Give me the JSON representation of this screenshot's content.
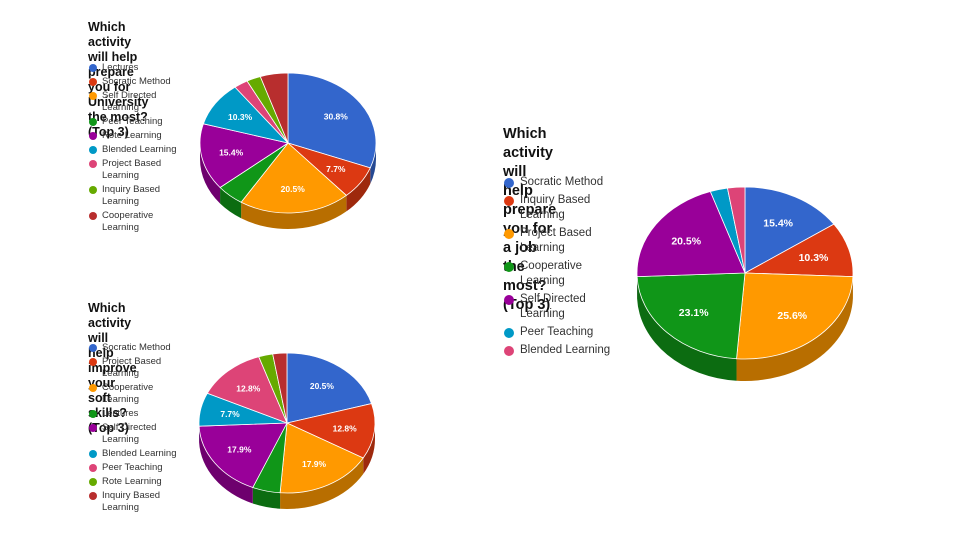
{
  "chart_data": [
    {
      "type": "pie",
      "title": "Which activity will help prepare you for\nUniversity the most? (Top 3)",
      "slices": [
        {
          "label": "Lectures",
          "value": 30.8,
          "color": "#3366cc",
          "value_label": "30.8%"
        },
        {
          "label": "Socratic Method",
          "value": 7.7,
          "color": "#dc3912",
          "value_label": "7.7%"
        },
        {
          "label": "Self Directed\nLearning",
          "value": 20.5,
          "color": "#ff9900",
          "value_label": "20.5%"
        },
        {
          "label": "Peer Teaching",
          "value": 5.1,
          "color": "#109618",
          "value_label": ""
        },
        {
          "label": "Rote Learning",
          "value": 15.4,
          "color": "#990099",
          "value_label": "15.4%"
        },
        {
          "label": "Blended Learning",
          "value": 10.3,
          "color": "#0099c6",
          "value_label": "10.3%"
        },
        {
          "label": "Project Based\nLearning",
          "value": 2.6,
          "color": "#dd4477",
          "value_label": ""
        },
        {
          "label": "Inquiry Based\nLearning",
          "value": 2.6,
          "color": "#66aa00",
          "value_label": ""
        },
        {
          "label": "Cooperative\nLearning",
          "value": 5.1,
          "color": "#b82e2e",
          "value_label": ""
        }
      ]
    },
    {
      "type": "pie",
      "title": "Which activity will help improve your soft skills?\n(Top 3)",
      "slices": [
        {
          "label": "Socratic Method",
          "value": 20.5,
          "color": "#3366cc",
          "value_label": "20.5%"
        },
        {
          "label": "Project Based\nLearning",
          "value": 12.8,
          "color": "#dc3912",
          "value_label": "12.8%"
        },
        {
          "label": "Cooperative\nLearning",
          "value": 17.9,
          "color": "#ff9900",
          "value_label": "17.9%"
        },
        {
          "label": "Lectures",
          "value": 5.1,
          "color": "#109618",
          "value_label": ""
        },
        {
          "label": "Self Directed\nLearning",
          "value": 17.9,
          "color": "#990099",
          "value_label": "17.9%"
        },
        {
          "label": "Blended Learning",
          "value": 7.7,
          "color": "#0099c6",
          "value_label": "7.7%"
        },
        {
          "label": "Peer Teaching",
          "value": 12.8,
          "color": "#dd4477",
          "value_label": "12.8%"
        },
        {
          "label": "Rote Learning",
          "value": 2.6,
          "color": "#66aa00",
          "value_label": ""
        },
        {
          "label": "Inquiry Based\nLearning",
          "value": 2.6,
          "color": "#b82e2e",
          "value_label": ""
        }
      ]
    },
    {
      "type": "pie",
      "title": "Which activity will help prepare you for a job the\nmost? (Top 3)",
      "slices": [
        {
          "label": "Socratic Method",
          "value": 15.4,
          "color": "#3366cc",
          "value_label": "15.4%"
        },
        {
          "label": "Inquiry Based\nLearning",
          "value": 10.3,
          "color": "#dc3912",
          "value_label": "10.3%"
        },
        {
          "label": "Project Based\nLearning",
          "value": 25.6,
          "color": "#ff9900",
          "value_label": "25.6%"
        },
        {
          "label": "Cooperative\nLearning",
          "value": 23.1,
          "color": "#109618",
          "value_label": "23.1%"
        },
        {
          "label": "Self Directed\nLearning",
          "value": 20.5,
          "color": "#990099",
          "value_label": "20.5%"
        },
        {
          "label": "Peer Teaching",
          "value": 2.6,
          "color": "#0099c6",
          "value_label": ""
        },
        {
          "label": "Blended Learning",
          "value": 2.6,
          "color": "#dd4477",
          "value_label": ""
        }
      ]
    }
  ]
}
